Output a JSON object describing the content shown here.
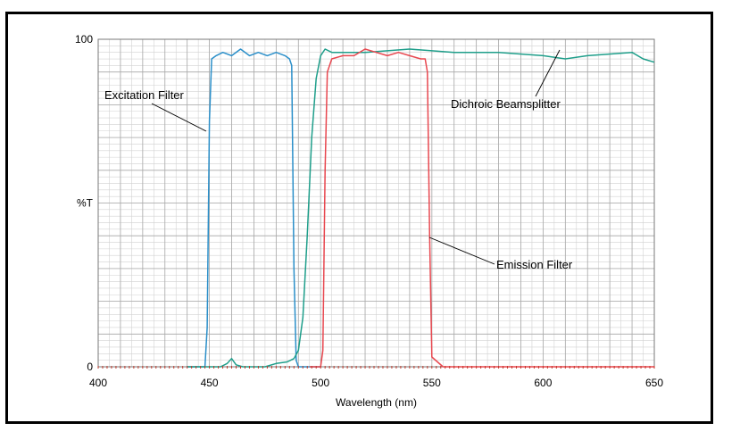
{
  "chart_data": {
    "type": "line",
    "title": "",
    "xlabel": "Wavelength (nm)",
    "ylabel": "%T",
    "xlim": [
      400,
      650
    ],
    "ylim": [
      0,
      100
    ],
    "x_ticks": [
      400,
      450,
      500,
      550,
      600,
      650
    ],
    "y_ticks": [
      0,
      100
    ],
    "y_mid_label": "%T",
    "grid": true,
    "colors": {
      "excitation": "#2b8fc9",
      "dichroic": "#1e9e8a",
      "emission": "#e8474f",
      "zero_markers": "#c0392b",
      "grid": "#a9a9a9"
    },
    "series": [
      {
        "name": "Excitation Filter",
        "x": [
          440,
          448,
          449,
          450,
          451,
          453,
          456,
          460,
          464,
          468,
          472,
          476,
          480,
          484,
          486,
          487,
          488,
          489,
          490,
          495,
          500
        ],
        "y": [
          0,
          0,
          12,
          75,
          94,
          95,
          96,
          95,
          97,
          95,
          96,
          95,
          96,
          95,
          94,
          92,
          30,
          2,
          0,
          0,
          0
        ]
      },
      {
        "name": "Dichroic Beamsplitter",
        "x": [
          440,
          455,
          458,
          460,
          462,
          465,
          475,
          480,
          485,
          488,
          490,
          492,
          494,
          496,
          498,
          500,
          502,
          505,
          520,
          540,
          560,
          580,
          600,
          610,
          620,
          640,
          645,
          650
        ],
        "y": [
          0,
          0,
          1,
          2.5,
          0.6,
          0,
          0,
          1,
          1.5,
          2.5,
          5,
          15,
          40,
          70,
          88,
          95,
          97,
          96,
          96,
          97,
          96,
          96,
          95,
          94,
          95,
          96,
          94,
          93
        ]
      },
      {
        "name": "Emission Filter",
        "x": [
          495,
          500,
          501,
          502,
          503,
          505,
          510,
          515,
          520,
          525,
          530,
          535,
          540,
          545,
          547,
          548,
          549,
          550,
          555,
          650
        ],
        "y": [
          0,
          0,
          5,
          60,
          90,
          94,
          95,
          95,
          97,
          96,
          95,
          96,
          95,
          94,
          94,
          90,
          40,
          3,
          0,
          0
        ]
      }
    ],
    "annotations": [
      {
        "text": "Excitation Filter",
        "x": 450,
        "y": 72
      },
      {
        "text": "Dichroic Beamsplitter",
        "x": 610,
        "y": 94
      },
      {
        "text": "Emission Filter",
        "x": 549,
        "y": 38
      }
    ]
  }
}
